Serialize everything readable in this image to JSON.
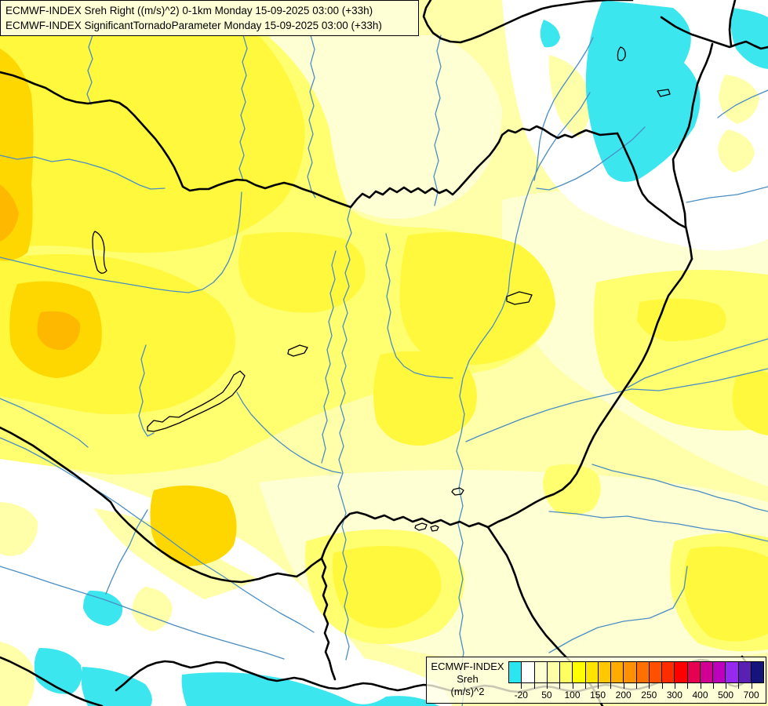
{
  "header": {
    "line1": "ECMWF-INDEX Sreh Right ((m/s)^2) 0-1km Monday 15-09-2025 03:00 (+33h)",
    "line2": "ECMWF-INDEX SignificantTornadoParameter Monday 15-09-2025 03:00 (+33h)"
  },
  "legend": {
    "title_lines": [
      "ECMWF-INDEX",
      "Sreh",
      "(m/s)^2"
    ],
    "swatch_colors": [
      "#2BE6F0",
      "#FFFFFF",
      "#FFFFD0",
      "#FFFFA8",
      "#FFFF62",
      "#FFFF00",
      "#FFE400",
      "#FFC800",
      "#FFAC00",
      "#FF9000",
      "#FF7000",
      "#FF5000",
      "#FF2C00",
      "#FF0000",
      "#E60050",
      "#D20092",
      "#BC00BC",
      "#9728F0",
      "#5A20B4",
      "#14147A"
    ],
    "tick_labels": [
      "-20",
      "50",
      "100",
      "150",
      "200",
      "250",
      "300",
      "400",
      "500",
      "700"
    ]
  },
  "map": {
    "description": "SREH shaded contour map over the Carpathian Basin with country borders, rivers and lakes",
    "palette": {
      "white": "#FFFFFF",
      "cream": "#FFFFD4",
      "pale_yellow": "#FFFFAA",
      "light_yellow": "#FFFF70",
      "yellow": "#FFF83C",
      "gold": "#FFD700",
      "orange": "#FFB800",
      "cyan": "#3CE6EF",
      "river": "#4A8DC2",
      "border": "#000000"
    }
  }
}
